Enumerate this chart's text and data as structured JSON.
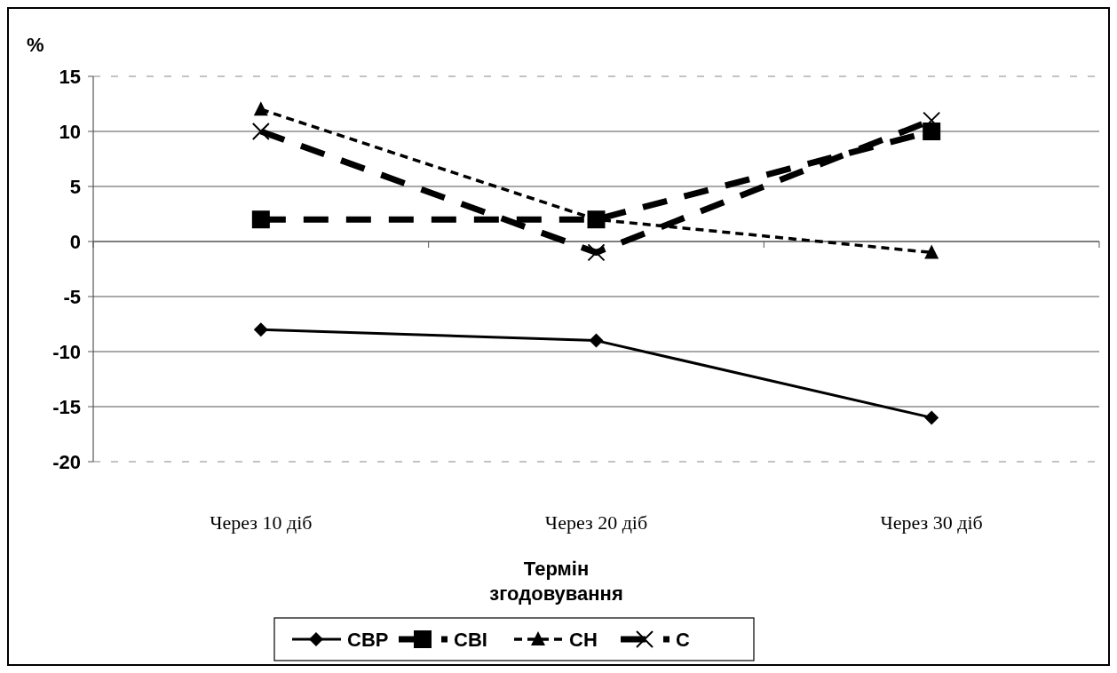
{
  "chart_data": {
    "type": "line",
    "ylabel": "%",
    "xlabel": "Термін згодовування",
    "categories": [
      "Через 10 діб",
      "Через 20 діб",
      "Через 30 діб"
    ],
    "series": [
      {
        "name": "СВР",
        "color": "#000000",
        "values": [
          -8,
          -9,
          -16
        ],
        "marker": "diamond",
        "line_style": "solid"
      },
      {
        "name": "СВІ",
        "color": "#000000",
        "values": [
          2,
          2,
          10
        ],
        "marker": "square",
        "line_style": "dashed"
      },
      {
        "name": "СН",
        "color": "#000000",
        "values": [
          12,
          2,
          -1
        ],
        "marker": "triangle",
        "line_style": "dotted"
      },
      {
        "name": "С",
        "color": "#000000",
        "values": [
          10,
          -1,
          11
        ],
        "marker": "cross",
        "line_style": "dashed"
      }
    ],
    "ylim": [
      -20,
      15
    ],
    "yticks": [
      -20,
      -15,
      -10,
      -5,
      0,
      5,
      10,
      15
    ],
    "grid": "y",
    "legend": "bottom"
  }
}
